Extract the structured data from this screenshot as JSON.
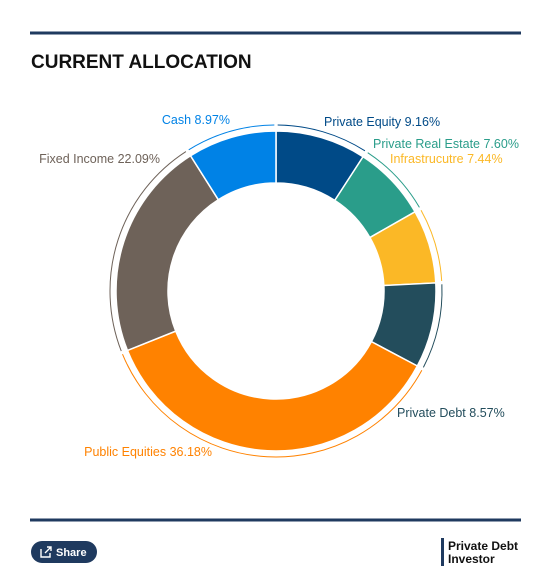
{
  "chart_data": {
    "type": "donut",
    "title": "CURRENT ALLOCATION",
    "categories": [
      "Private Equity",
      "Private Real Estate",
      "Infrastrucutre",
      "Private Debt",
      "Public Equities",
      "Fixed Income",
      "Cash"
    ],
    "values": [
      9.16,
      7.6,
      7.44,
      8.57,
      36.18,
      22.09,
      8.97
    ],
    "value_labels": [
      "9.16%",
      "7.60%",
      "7.44%",
      "8.57%",
      "36.18%",
      "22.09%",
      "8.97%"
    ],
    "colors": [
      "#004a87",
      "#2a9d8a",
      "#fbb826",
      "#234d5c",
      "#ff8200",
      "#6e6259",
      "#0082e6"
    ]
  },
  "footer": {
    "share": "Share",
    "logo": [
      "Private Debt",
      "Investor"
    ]
  }
}
